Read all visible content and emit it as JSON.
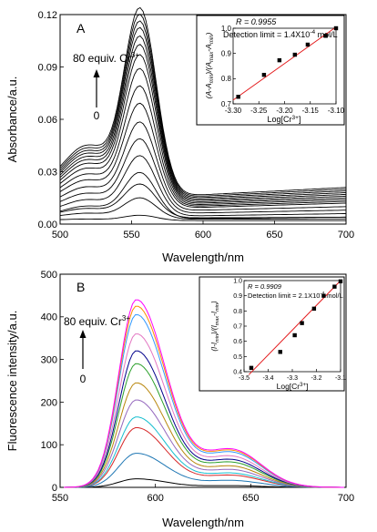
{
  "chart_data": [
    {
      "type": "line",
      "panel_label": "A",
      "xlabel": "Wavelength/nm",
      "ylabel": "Absorbance/a.u.",
      "xlim": [
        500,
        700
      ],
      "ylim": [
        0,
        0.12
      ],
      "x_ticks": [
        "500",
        "550",
        "600",
        "650",
        "700"
      ],
      "y_ticks": [
        "0.00",
        "0.03",
        "0.06",
        "0.09",
        "0.12"
      ],
      "arrow_top_label": "80 equiv. Cr",
      "arrow_top_sup": "3+",
      "arrow_bottom_label": "0",
      "color": "#000000",
      "peak_x": 556,
      "peak_values": [
        0.003,
        0.012,
        0.019,
        0.026,
        0.034,
        0.042,
        0.05,
        0.059,
        0.068,
        0.077,
        0.084,
        0.089,
        0.093,
        0.097,
        0.1,
        0.103,
        0.106
      ],
      "tail_values_at_700": [
        0.0,
        0.001,
        0.002,
        0.004,
        0.006,
        0.008,
        0.01,
        0.012,
        0.013,
        0.014,
        0.015,
        0.016,
        0.017,
        0.018,
        0.019,
        0.02,
        0.021
      ],
      "inset": {
        "type": "scatter",
        "r_text": "R = 0.9955",
        "limit_text": "Detection limit = 1.4X10",
        "limit_sup": "-4",
        "limit_unit": " mol/L",
        "xlabel_main": "Log[Cr",
        "xlabel_sup": "3+",
        "xlabel_end": "]",
        "ylabel": "(A-A",
        "ylabel_sub1": "min",
        "ylabel_mid": ")/(A",
        "ylabel_sub2": "max",
        "ylabel_mid2": "-A",
        "ylabel_sub3": "min",
        "ylabel_end": ")",
        "xlim": [
          -3.3,
          -3.1
        ],
        "ylim": [
          0.7,
          1.0
        ],
        "x_ticks": [
          "-3.30",
          "-3.25",
          "-3.20",
          "-3.15",
          "-3.10"
        ],
        "y_ticks": [
          "0.7",
          "0.8",
          "0.9",
          "1.0"
        ],
        "points": [
          [
            -3.29,
            0.728
          ],
          [
            -3.24,
            0.815
          ],
          [
            -3.21,
            0.873
          ],
          [
            -3.18,
            0.895
          ],
          [
            -3.155,
            0.935
          ],
          [
            -3.12,
            0.97
          ],
          [
            -3.1,
            1.0
          ]
        ],
        "fit_line": [
          [
            -3.3,
            0.715
          ],
          [
            -3.1,
            1.005
          ]
        ],
        "fit_color": "#e41a1c"
      }
    },
    {
      "type": "line",
      "panel_label": "B",
      "xlabel": "Wavelength/nm",
      "ylabel": "Fluorescence intensity/a.u.",
      "xlim": [
        550,
        700
      ],
      "ylim": [
        0,
        500
      ],
      "x_ticks": [
        "550",
        "600",
        "650",
        "700"
      ],
      "y_ticks": [
        "0",
        "100",
        "200",
        "300",
        "400",
        "500"
      ],
      "arrow_top_label": "80 equiv. Cr",
      "arrow_top_sup": "3+",
      "arrow_bottom_label": "0",
      "peak_x": 590,
      "series": [
        {
          "peak": 20,
          "color": "#000000"
        },
        {
          "peak": 80,
          "color": "#1f77b4"
        },
        {
          "peak": 140,
          "color": "#d62728"
        },
        {
          "peak": 165,
          "color": "#17becf"
        },
        {
          "peak": 205,
          "color": "#9467bd"
        },
        {
          "peak": 245,
          "color": "#b8860b"
        },
        {
          "peak": 290,
          "color": "#2ca02c"
        },
        {
          "peak": 320,
          "color": "#00008b"
        },
        {
          "peak": 360,
          "color": "#e377c2"
        },
        {
          "peak": 405,
          "color": "#3399ff"
        },
        {
          "peak": 425,
          "color": "#ff8c00"
        },
        {
          "peak": 440,
          "color": "#ff00ff"
        }
      ],
      "inset": {
        "type": "scatter",
        "r_text": "R = 0.9909",
        "limit_text": "Detection limit = 2.1X10",
        "limit_sup": "-4",
        "limit_unit": " mol/L",
        "xlabel_main": "Log[Cr",
        "xlabel_sup": "3+",
        "xlabel_end": "]",
        "ylabel": "(I-I",
        "ylabel_sub1": "min",
        "ylabel_mid": ")/(I",
        "ylabel_sub2": "max",
        "ylabel_mid2": "-I",
        "ylabel_sub3": "min",
        "ylabel_end": ")",
        "xlim": [
          -3.5,
          -3.1
        ],
        "ylim": [
          0.4,
          1.0
        ],
        "x_ticks": [
          "-3.5",
          "-3.4",
          "-3.3",
          "-3.2",
          "-3.1"
        ],
        "y_ticks": [
          "0.4",
          "0.5",
          "0.6",
          "0.7",
          "0.8",
          "0.9",
          "1.0"
        ],
        "points": [
          [
            -3.47,
            0.425
          ],
          [
            -3.35,
            0.53
          ],
          [
            -3.29,
            0.64
          ],
          [
            -3.26,
            0.72
          ],
          [
            -3.21,
            0.815
          ],
          [
            -3.17,
            0.9
          ],
          [
            -3.125,
            0.96
          ],
          [
            -3.1,
            0.995
          ]
        ],
        "fit_line": [
          [
            -3.48,
            0.38
          ],
          [
            -3.1,
            1.0
          ]
        ],
        "fit_color": "#e41a1c"
      }
    }
  ]
}
